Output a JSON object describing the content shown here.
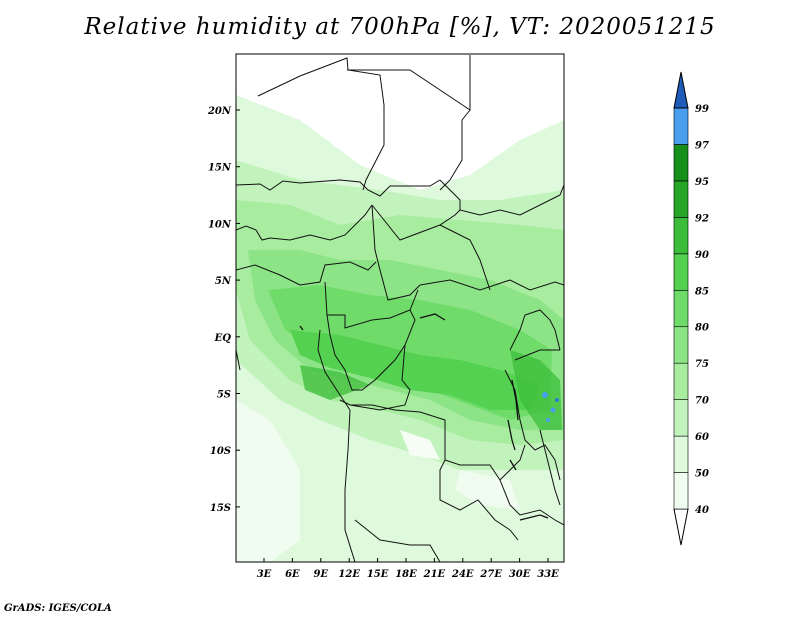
{
  "title": "Relative humidity at 700hPa [%], VT: 2020051215",
  "credit": "GrADS: IGES/COLA",
  "map": {
    "lat_labels": [
      "20N",
      "15N",
      "10N",
      "5N",
      "EQ",
      "5S",
      "10S",
      "15S"
    ],
    "lon_labels": [
      "3E",
      "6E",
      "9E",
      "12E",
      "15E",
      "18E",
      "21E",
      "24E",
      "27E",
      "30E",
      "33E"
    ]
  },
  "colorbar": {
    "levels": [
      "40",
      "50",
      "60",
      "70",
      "75",
      "80",
      "85",
      "90",
      "92",
      "95",
      "97",
      "99"
    ],
    "colors": [
      "#f0fcef",
      "#def9dc",
      "#c3f3bd",
      "#a8ec9f",
      "#8ce487",
      "#6fdc6a",
      "#54d150",
      "#3cbd3a",
      "#27a527",
      "#16901a",
      "#4a9ef0",
      "#2d79d8",
      "#1f5bb8"
    ]
  }
}
